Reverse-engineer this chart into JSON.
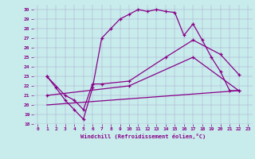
{
  "xlabel": "Windchill (Refroidissement éolien,°C)",
  "bg_color": "#c8ecec",
  "line_color": "#880088",
  "xlim": [
    -0.5,
    23.5
  ],
  "ylim": [
    18,
    30.5
  ],
  "yticks": [
    18,
    19,
    20,
    21,
    22,
    23,
    24,
    25,
    26,
    27,
    28,
    29,
    30
  ],
  "xticks": [
    0,
    1,
    2,
    3,
    4,
    5,
    6,
    7,
    8,
    9,
    10,
    11,
    12,
    13,
    14,
    15,
    16,
    17,
    18,
    19,
    20,
    21,
    22,
    23
  ],
  "curve1_x": [
    1,
    2,
    3,
    4,
    5,
    6,
    7,
    8,
    9,
    10,
    11,
    12,
    13,
    14,
    15,
    16,
    17,
    18,
    19,
    20,
    21,
    22
  ],
  "curve1_y": [
    23,
    21.8,
    20.5,
    19.5,
    18.5,
    21.8,
    27.0,
    28.0,
    29.0,
    29.5,
    30.0,
    29.8,
    30.0,
    29.8,
    29.7,
    27.3,
    28.5,
    26.8,
    25.0,
    23.5,
    21.5,
    21.5
  ],
  "curve2_x": [
    1,
    3,
    4,
    5,
    6,
    7,
    10,
    14,
    17,
    20,
    22
  ],
  "curve2_y": [
    23.0,
    21.0,
    20.5,
    19.5,
    22.2,
    22.2,
    22.5,
    25.0,
    26.8,
    25.3,
    23.2
  ],
  "curve3_x": [
    1,
    10,
    17,
    22
  ],
  "curve3_y": [
    21.0,
    22.0,
    25.0,
    21.5
  ],
  "curve4_x": [
    1,
    22
  ],
  "curve4_y": [
    20.0,
    21.5
  ]
}
